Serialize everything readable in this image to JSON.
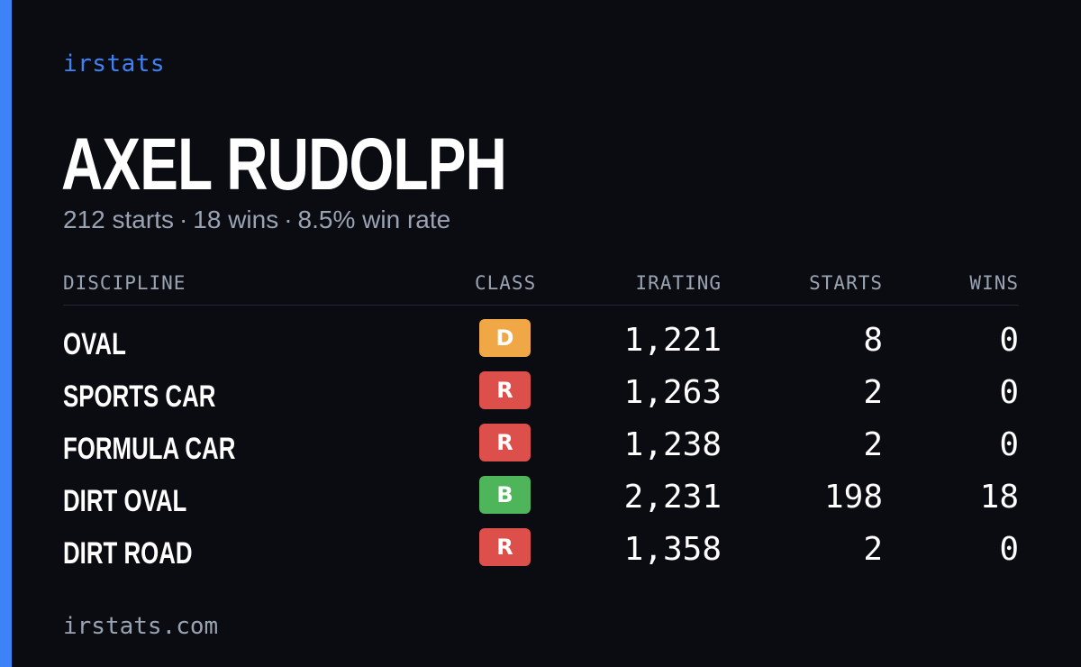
{
  "brand": "irstats",
  "driver": {
    "name": "AXEL RUDOLPH",
    "starts_text": "212 starts",
    "wins_text": "18 wins",
    "win_rate_text": "8.5% win rate",
    "separator": "·"
  },
  "table": {
    "headers": {
      "discipline": "DISCIPLINE",
      "class": "CLASS",
      "irating": "IRATING",
      "starts": "STARTS",
      "wins": "WINS"
    },
    "rows": [
      {
        "discipline": "OVAL",
        "class": "D",
        "class_color": "#f0a847",
        "irating": "1,221",
        "starts": "8",
        "wins": "0"
      },
      {
        "discipline": "SPORTS CAR",
        "class": "R",
        "class_color": "#dd4f4a",
        "irating": "1,263",
        "starts": "2",
        "wins": "0"
      },
      {
        "discipline": "FORMULA CAR",
        "class": "R",
        "class_color": "#dd4f4a",
        "irating": "1,238",
        "starts": "2",
        "wins": "0"
      },
      {
        "discipline": "DIRT OVAL",
        "class": "B",
        "class_color": "#4fb55a",
        "irating": "2,231",
        "starts": "198",
        "wins": "18"
      },
      {
        "discipline": "DIRT ROAD",
        "class": "R",
        "class_color": "#dd4f4a",
        "irating": "1,358",
        "starts": "2",
        "wins": "0"
      }
    ]
  },
  "footer": "irstats.com",
  "colors": {
    "background": "#0a0c12",
    "accent": "#3d83f7",
    "muted_text": "#9aa3b2"
  }
}
